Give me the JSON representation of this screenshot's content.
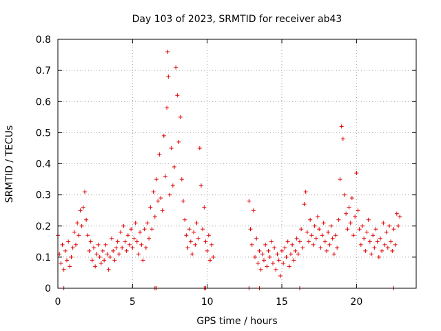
{
  "chart_data": {
    "type": "scatter",
    "title": "Day 103 of 2023, SRMTID for receiver ab43",
    "xlabel": "GPS time / hours",
    "ylabel": "SRMTID / TECUs",
    "xlim": [
      0,
      24
    ],
    "ylim": [
      0,
      0.8
    ],
    "xticks": [
      0,
      5,
      10,
      15,
      20
    ],
    "yticks": [
      0,
      0.1,
      0.2,
      0.3,
      0.4,
      0.5,
      0.6,
      0.7,
      0.8
    ],
    "xtick_labels": [
      "0",
      "5",
      "10",
      "15",
      "20"
    ],
    "ytick_labels": [
      "0",
      "0.1",
      "0.2",
      "0.3",
      "0.4",
      "0.5",
      "0.6",
      "0.7",
      "0.8"
    ],
    "grid": true,
    "marker": "plus",
    "color": "#e00000",
    "series": [
      {
        "name": "SRMTID",
        "points": [
          [
            0.0,
            0.17
          ],
          [
            0.1,
            0.11
          ],
          [
            0.2,
            0.08
          ],
          [
            0.3,
            0.14
          ],
          [
            0.4,
            0.06
          ],
          [
            0.5,
            0.12
          ],
          [
            0.6,
            0.09
          ],
          [
            0.7,
            0.15
          ],
          [
            0.8,
            0.07
          ],
          [
            0.9,
            0.1
          ],
          [
            1.0,
            0.13
          ],
          [
            1.1,
            0.18
          ],
          [
            1.2,
            0.14
          ],
          [
            1.3,
            0.21
          ],
          [
            1.4,
            0.17
          ],
          [
            1.5,
            0.25
          ],
          [
            1.6,
            0.2
          ],
          [
            1.7,
            0.26
          ],
          [
            1.8,
            0.31
          ],
          [
            1.9,
            0.22
          ],
          [
            2.0,
            0.17
          ],
          [
            2.1,
            0.12
          ],
          [
            2.2,
            0.15
          ],
          [
            2.3,
            0.09
          ],
          [
            2.4,
            0.13
          ],
          [
            2.5,
            0.07
          ],
          [
            2.6,
            0.11
          ],
          [
            2.7,
            0.14
          ],
          [
            2.8,
            0.1
          ],
          [
            2.9,
            0.08
          ],
          [
            3.0,
            0.12
          ],
          [
            3.1,
            0.09
          ],
          [
            3.2,
            0.14
          ],
          [
            3.3,
            0.11
          ],
          [
            3.4,
            0.06
          ],
          [
            3.5,
            0.1
          ],
          [
            3.6,
            0.16
          ],
          [
            3.7,
            0.12
          ],
          [
            3.8,
            0.09
          ],
          [
            3.9,
            0.13
          ],
          [
            4.0,
            0.15
          ],
          [
            4.1,
            0.11
          ],
          [
            4.2,
            0.18
          ],
          [
            4.3,
            0.13
          ],
          [
            4.4,
            0.2
          ],
          [
            4.5,
            0.15
          ],
          [
            4.6,
            0.12
          ],
          [
            4.7,
            0.17
          ],
          [
            4.8,
            0.14
          ],
          [
            4.9,
            0.19
          ],
          [
            5.0,
            0.13
          ],
          [
            5.1,
            0.16
          ],
          [
            5.2,
            0.21
          ],
          [
            5.3,
            0.15
          ],
          [
            5.4,
            0.11
          ],
          [
            5.5,
            0.18
          ],
          [
            5.6,
            0.14
          ],
          [
            5.7,
            0.09
          ],
          [
            5.8,
            0.19
          ],
          [
            5.9,
            0.13
          ],
          [
            6.0,
            0.21
          ],
          [
            6.1,
            0.16
          ],
          [
            6.2,
            0.26
          ],
          [
            6.3,
            0.19
          ],
          [
            6.4,
            0.31
          ],
          [
            6.5,
            0.23
          ],
          [
            6.6,
            0.35
          ],
          [
            6.7,
            0.28
          ],
          [
            6.8,
            0.43
          ],
          [
            6.9,
            0.29
          ],
          [
            7.0,
            0.25
          ],
          [
            7.1,
            0.49
          ],
          [
            7.2,
            0.36
          ],
          [
            7.3,
            0.58
          ],
          [
            7.35,
            0.76
          ],
          [
            7.4,
            0.68
          ],
          [
            7.5,
            0.3
          ],
          [
            7.6,
            0.45
          ],
          [
            7.7,
            0.33
          ],
          [
            7.8,
            0.39
          ],
          [
            7.9,
            0.71
          ],
          [
            8.0,
            0.62
          ],
          [
            8.1,
            0.47
          ],
          [
            8.2,
            0.55
          ],
          [
            8.3,
            0.35
          ],
          [
            8.4,
            0.28
          ],
          [
            8.5,
            0.22
          ],
          [
            8.6,
            0.17
          ],
          [
            8.7,
            0.13
          ],
          [
            8.8,
            0.19
          ],
          [
            8.9,
            0.15
          ],
          [
            9.0,
            0.11
          ],
          [
            9.1,
            0.18
          ],
          [
            9.2,
            0.14
          ],
          [
            9.3,
            0.21
          ],
          [
            9.4,
            0.16
          ],
          [
            9.5,
            0.45
          ],
          [
            9.6,
            0.33
          ],
          [
            9.7,
            0.19
          ],
          [
            9.8,
            0.26
          ],
          [
            9.9,
            0.15
          ],
          [
            10.0,
            0.12
          ],
          [
            10.1,
            0.17
          ],
          [
            10.2,
            0.09
          ],
          [
            10.3,
            0.14
          ],
          [
            10.4,
            0.1
          ],
          [
            12.8,
            0.28
          ],
          [
            12.9,
            0.19
          ],
          [
            13.0,
            0.14
          ],
          [
            13.1,
            0.25
          ],
          [
            13.2,
            0.1
          ],
          [
            13.3,
            0.16
          ],
          [
            13.4,
            0.08
          ],
          [
            13.5,
            0.12
          ],
          [
            13.6,
            0.06
          ],
          [
            13.7,
            0.11
          ],
          [
            13.8,
            0.09
          ],
          [
            13.9,
            0.14
          ],
          [
            14.0,
            0.07
          ],
          [
            14.1,
            0.12
          ],
          [
            14.2,
            0.1
          ],
          [
            14.3,
            0.15
          ],
          [
            14.4,
            0.08
          ],
          [
            14.5,
            0.13
          ],
          [
            14.6,
            0.06
          ],
          [
            14.7,
            0.11
          ],
          [
            14.8,
            0.09
          ],
          [
            14.9,
            0.04
          ],
          [
            15.0,
            0.12
          ],
          [
            15.1,
            0.08
          ],
          [
            15.2,
            0.13
          ],
          [
            15.3,
            0.1
          ],
          [
            15.4,
            0.15
          ],
          [
            15.5,
            0.07
          ],
          [
            15.6,
            0.11
          ],
          [
            15.7,
            0.14
          ],
          [
            15.8,
            0.09
          ],
          [
            15.9,
            0.12
          ],
          [
            16.0,
            0.16
          ],
          [
            16.1,
            0.11
          ],
          [
            16.2,
            0.15
          ],
          [
            16.3,
            0.19
          ],
          [
            16.4,
            0.13
          ],
          [
            16.5,
            0.27
          ],
          [
            16.6,
            0.31
          ],
          [
            16.7,
            0.18
          ],
          [
            16.8,
            0.15
          ],
          [
            16.9,
            0.22
          ],
          [
            17.0,
            0.17
          ],
          [
            17.1,
            0.14
          ],
          [
            17.2,
            0.2
          ],
          [
            17.3,
            0.16
          ],
          [
            17.4,
            0.23
          ],
          [
            17.5,
            0.19
          ],
          [
            17.6,
            0.13
          ],
          [
            17.7,
            0.17
          ],
          [
            17.8,
            0.21
          ],
          [
            17.9,
            0.15
          ],
          [
            18.0,
            0.12
          ],
          [
            18.1,
            0.18
          ],
          [
            18.2,
            0.14
          ],
          [
            18.3,
            0.2
          ],
          [
            18.4,
            0.16
          ],
          [
            18.5,
            0.11
          ],
          [
            18.6,
            0.17
          ],
          [
            18.7,
            0.13
          ],
          [
            18.8,
            0.22
          ],
          [
            18.9,
            0.35
          ],
          [
            19.0,
            0.52
          ],
          [
            19.1,
            0.48
          ],
          [
            19.2,
            0.3
          ],
          [
            19.3,
            0.24
          ],
          [
            19.4,
            0.19
          ],
          [
            19.5,
            0.26
          ],
          [
            19.6,
            0.21
          ],
          [
            19.7,
            0.29
          ],
          [
            19.8,
            0.17
          ],
          [
            19.9,
            0.23
          ],
          [
            20.0,
            0.37
          ],
          [
            20.1,
            0.25
          ],
          [
            20.2,
            0.19
          ],
          [
            20.3,
            0.14
          ],
          [
            20.4,
            0.2
          ],
          [
            20.5,
            0.16
          ],
          [
            20.6,
            0.12
          ],
          [
            20.7,
            0.18
          ],
          [
            20.8,
            0.22
          ],
          [
            20.9,
            0.15
          ],
          [
            21.0,
            0.11
          ],
          [
            21.1,
            0.17
          ],
          [
            21.2,
            0.13
          ],
          [
            21.3,
            0.19
          ],
          [
            21.4,
            0.15
          ],
          [
            21.5,
            0.1
          ],
          [
            21.6,
            0.16
          ],
          [
            21.7,
            0.12
          ],
          [
            21.8,
            0.21
          ],
          [
            21.9,
            0.14
          ],
          [
            22.0,
            0.18
          ],
          [
            22.1,
            0.13
          ],
          [
            22.2,
            0.2
          ],
          [
            22.3,
            0.15
          ],
          [
            22.4,
            0.12
          ],
          [
            22.5,
            0.19
          ],
          [
            22.6,
            0.14
          ],
          [
            22.7,
            0.24
          ],
          [
            22.8,
            0.2
          ],
          [
            22.9,
            0.23
          ],
          [
            0.4,
            0.0
          ],
          [
            6.5,
            0.0
          ],
          [
            6.6,
            0.0
          ],
          [
            9.8,
            0.0
          ],
          [
            9.9,
            0.0
          ],
          [
            12.8,
            0.0
          ],
          [
            13.5,
            0.0
          ],
          [
            16.2,
            0.0
          ],
          [
            22.5,
            0.0
          ]
        ]
      }
    ]
  }
}
